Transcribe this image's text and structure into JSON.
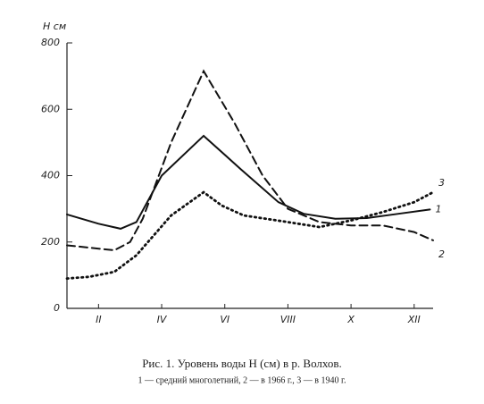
{
  "chart_data": {
    "type": "line",
    "title": "Рис. 1. Уровень воды H (см) в р. Волхов.",
    "subtitle": "1 — средний многолетний, 2 — в 1966 г., 3 — в 1940 г.",
    "y_label": "H см",
    "xlim": [
      1,
      12.6
    ],
    "xticks": [
      {
        "value": 2,
        "label": "II"
      },
      {
        "value": 4,
        "label": "IV"
      },
      {
        "value": 6,
        "label": "VI"
      },
      {
        "value": 8,
        "label": "VIII"
      },
      {
        "value": 10,
        "label": "X"
      },
      {
        "value": 12,
        "label": "XII"
      }
    ],
    "ylim": [
      0,
      800
    ],
    "yticks": [
      0,
      200,
      400,
      600,
      800
    ],
    "series": [
      {
        "name": "1",
        "color": "#111",
        "dash": "solid",
        "x": [
          1,
          2,
          2.7,
          3.2,
          4,
          5.33,
          6.5,
          7.7,
          8.5,
          9.5,
          10.5,
          11.5,
          12.5
        ],
        "values": [
          283,
          255,
          240,
          260,
          400,
          520,
          420,
          320,
          285,
          270,
          272,
          285,
          298
        ]
      },
      {
        "name": "2",
        "color": "#111",
        "dash": "dashed",
        "x": [
          1,
          2.5,
          3,
          3.4,
          4.3,
          5.33,
          6.3,
          7.2,
          8,
          9,
          10,
          11,
          12,
          12.6
        ],
        "values": [
          190,
          175,
          200,
          270,
          500,
          715,
          560,
          400,
          300,
          260,
          250,
          250,
          230,
          205
        ]
      },
      {
        "name": "3",
        "color": "#111",
        "dash": "dotted",
        "x": [
          1,
          1.7,
          2.5,
          3.2,
          4.3,
          5.33,
          5.9,
          6.6,
          8,
          9,
          10,
          11,
          12,
          12.6
        ],
        "values": [
          90,
          95,
          110,
          160,
          280,
          350,
          310,
          280,
          260,
          245,
          265,
          290,
          320,
          350
        ]
      }
    ]
  }
}
